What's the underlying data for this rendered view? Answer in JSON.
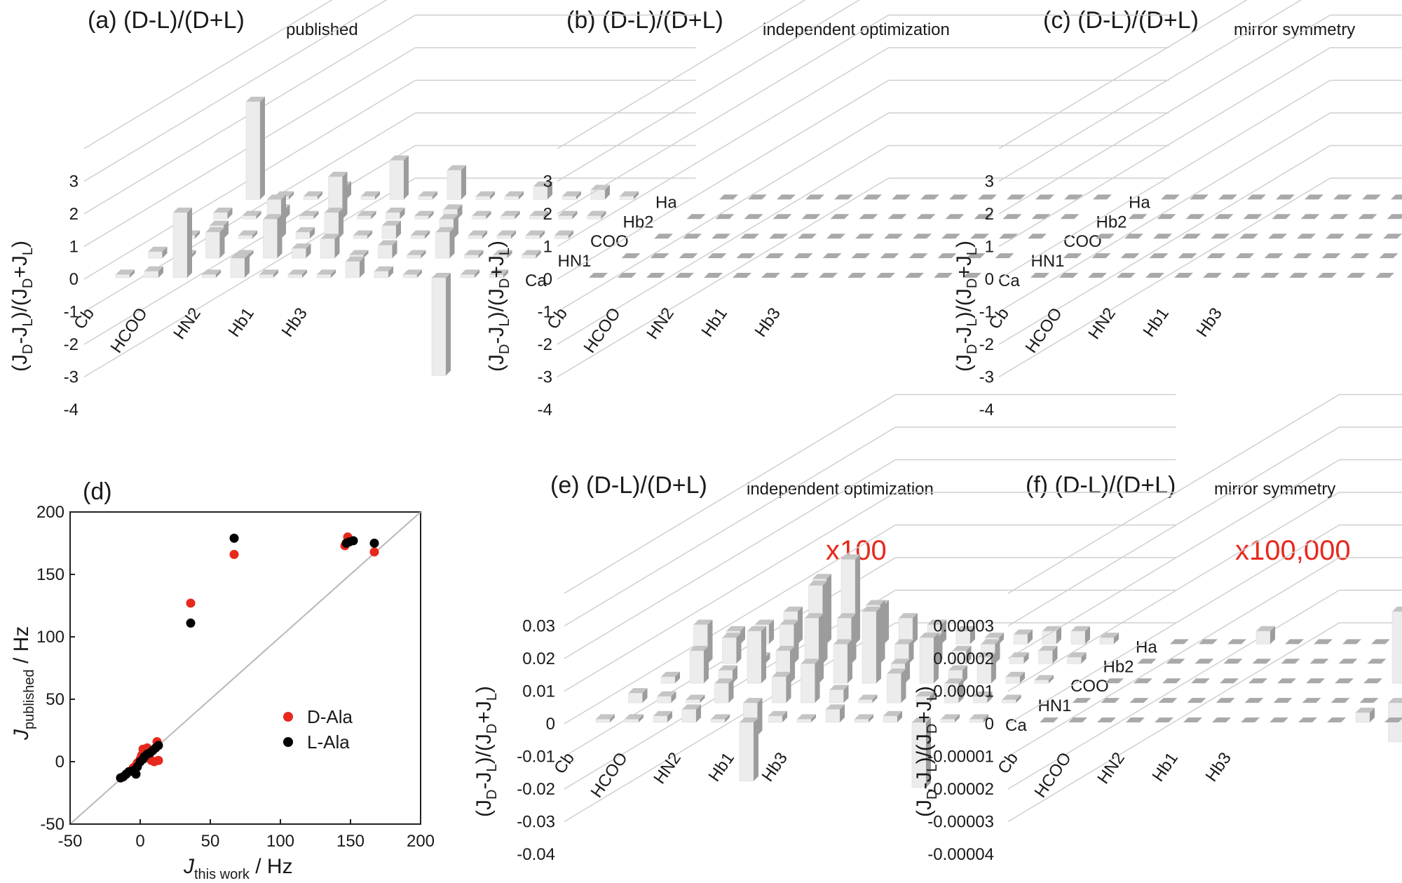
{
  "panels": {
    "a": {
      "title": "(a) (D-L)/(D+L)",
      "sub": "published",
      "yticks": [
        "3",
        "2",
        "1",
        "0",
        "-1",
        "-2",
        "-3",
        "-4"
      ]
    },
    "b": {
      "title": "(b) (D-L)/(D+L)",
      "sub": "independent optimization",
      "yticks": [
        "3",
        "2",
        "1",
        "0",
        "-1",
        "-2",
        "-3",
        "-4"
      ]
    },
    "c": {
      "title": "(c) (D-L)/(D+L)",
      "sub": "mirror symmetry",
      "yticks": [
        "3",
        "2",
        "1",
        "0",
        "-1",
        "-2",
        "-3",
        "-4"
      ]
    },
    "e": {
      "title": "(e) (D-L)/(D+L)",
      "sub": "independent optimization",
      "multiplier": "x100",
      "yticks": [
        "0.03",
        "0.02",
        "0.01",
        "0",
        "-0.01",
        "-0.02",
        "-0.03",
        "-0.04"
      ]
    },
    "f": {
      "title": "(f) (D-L)/(D+L)",
      "sub": "mirror symmetry",
      "multiplier": "x100,000",
      "yticks": [
        "0.00003",
        "0.00002",
        "0.00001",
        "0",
        "-0.00001",
        "-0.00002",
        "-0.00003",
        "-0.00004"
      ]
    }
  },
  "axes3d": {
    "x_categories": [
      "Cb",
      "HCOO",
      "HN2",
      "Hb1",
      "Hb3"
    ],
    "depth_categories": [
      "Ca",
      "HN1",
      "COO",
      "Hb2",
      "Ha"
    ],
    "ylabel_main": "(J",
    "ylabel_sub_d": "D",
    "ylabel_mid": "-J",
    "ylabel_sub_l": "L",
    "ylabel_mid2": ")/(J",
    "ylabel_sub_d2": "D",
    "ylabel_plus": "+J",
    "ylabel_sub_l2": "L",
    "ylabel_end": ")"
  },
  "chart_data": [
    {
      "type": "bar3d",
      "panel": "a",
      "title": "(a) (D-L)/(D+L) published",
      "ylim": [
        -4,
        3
      ],
      "ylabel": "(J_D-J_L)/(J_D+J_L)",
      "x_categories": [
        "Cb",
        "HCOO",
        "HN2",
        "Hb1",
        "Hb3"
      ],
      "depth_categories": [
        "Ca",
        "HN1",
        "COO",
        "Hb2",
        "Ha"
      ],
      "values": [
        [
          0.1,
          0.2,
          2.0,
          0.1,
          0.6,
          0.1,
          0.1,
          0.1,
          0.5,
          0.2,
          0.1,
          -3.0,
          0.1,
          0.1
        ],
        [
          0.2,
          0.1,
          0.8,
          0.1,
          1.2,
          0.3,
          0.6,
          0.1,
          0.4,
          0.1,
          0.8,
          0.1,
          0.1,
          0.1
        ],
        [
          0.1,
          0.4,
          0.1,
          1.2,
          0.2,
          0.8,
          0.1,
          0.4,
          0.1,
          0.6,
          0.1,
          0.1,
          0.1,
          0.1
        ],
        [
          0.2,
          0.1,
          0.3,
          0.1,
          1.3,
          0.1,
          0.2,
          0.1,
          0.3,
          0.1,
          0.1,
          0.1,
          0.1,
          0.1
        ],
        [
          3.0,
          0.1,
          0.1,
          0.4,
          0.1,
          1.2,
          0.1,
          0.9,
          0.1,
          0.1,
          0.4,
          0.1,
          0.3,
          0.1
        ]
      ]
    },
    {
      "type": "bar3d",
      "panel": "b",
      "title": "(b) (D-L)/(D+L) independent optimization",
      "ylim": [
        -4,
        3
      ],
      "ylabel": "(J_D-J_L)/(J_D+J_L)",
      "x_categories": [
        "Cb",
        "HCOO",
        "HN2",
        "Hb1",
        "Hb3"
      ],
      "depth_categories": [
        "Ca",
        "HN1",
        "COO",
        "Hb2",
        "Ha"
      ],
      "values": "all approximately 0"
    },
    {
      "type": "bar3d",
      "panel": "c",
      "title": "(c) (D-L)/(D+L) mirror symmetry",
      "ylim": [
        -4,
        3
      ],
      "ylabel": "(J_D-J_L)/(J_D+J_L)",
      "x_categories": [
        "Cb",
        "HCOO",
        "HN2",
        "Hb1",
        "Hb3"
      ],
      "depth_categories": [
        "Ca",
        "HN1",
        "COO",
        "Hb2",
        "Ha"
      ],
      "values": "all approximately 0"
    },
    {
      "type": "scatter",
      "panel": "d",
      "title": "(d)",
      "xlabel": "J_this work / Hz",
      "ylabel": "J_published / Hz",
      "xlim": [
        -50,
        200
      ],
      "ylim": [
        -50,
        200
      ],
      "xticks": [
        -50,
        0,
        50,
        100,
        150,
        200
      ],
      "yticks": [
        -50,
        0,
        50,
        100,
        150,
        200
      ],
      "reference_line": "y = x",
      "series": [
        {
          "name": "D-Ala",
          "color": "#e8281c",
          "points": [
            [
              -14,
              -13
            ],
            [
              -12,
              -12
            ],
            [
              -10,
              -10
            ],
            [
              -8,
              -8
            ],
            [
              -6,
              -7
            ],
            [
              -5,
              -5
            ],
            [
              -3,
              -3
            ],
            [
              -2,
              -1
            ],
            [
              0,
              2
            ],
            [
              1,
              5
            ],
            [
              2,
              10
            ],
            [
              3,
              3
            ],
            [
              5,
              11
            ],
            [
              6,
              6
            ],
            [
              7,
              8
            ],
            [
              8,
              1
            ],
            [
              10,
              0
            ],
            [
              12,
              16
            ],
            [
              13,
              1
            ],
            [
              36,
              127
            ],
            [
              67,
              166
            ],
            [
              146,
              173
            ],
            [
              148,
              180
            ],
            [
              150,
              177
            ],
            [
              152,
              177
            ],
            [
              167,
              168
            ]
          ]
        },
        {
          "name": "L-Ala",
          "color": "#000000",
          "points": [
            [
              -14,
              -13
            ],
            [
              -12,
              -12
            ],
            [
              -10,
              -10
            ],
            [
              -8,
              -8
            ],
            [
              -5,
              -7
            ],
            [
              -3,
              -10
            ],
            [
              -2,
              -4
            ],
            [
              0,
              0
            ],
            [
              2,
              2
            ],
            [
              3,
              4
            ],
            [
              5,
              6
            ],
            [
              7,
              7
            ],
            [
              9,
              9
            ],
            [
              11,
              11
            ],
            [
              13,
              13
            ],
            [
              36,
              111
            ],
            [
              67,
              179
            ],
            [
              147,
              175
            ],
            [
              149,
              176
            ],
            [
              152,
              177
            ],
            [
              167,
              175
            ]
          ]
        }
      ]
    },
    {
      "type": "bar3d",
      "panel": "e",
      "title": "(e) (D-L)/(D+L) independent optimization",
      "multiplier": "x100",
      "ylim": [
        -0.04,
        0.03
      ],
      "ylabel": "(J_D-J_L)/(J_D+J_L)",
      "x_categories": [
        "Cb",
        "HCOO",
        "HN2",
        "Hb1",
        "Hb3"
      ],
      "depth_categories": [
        "Ca",
        "HN1",
        "COO",
        "Hb2",
        "Ha"
      ],
      "values": [
        [
          0.001,
          0.001,
          0.002,
          0.004,
          0.001,
          -0.018,
          0.002,
          0.001,
          0.004,
          0.001,
          0.002,
          -0.02,
          0.001,
          0.001
        ],
        [
          0.003,
          0.002,
          0.001,
          0.006,
          -0.01,
          0.008,
          0.012,
          0.004,
          0.001,
          0.009,
          0.002,
          0.006,
          0.002,
          0.001
        ],
        [
          0.002,
          0.01,
          0.004,
          0.016,
          0.01,
          0.02,
          0.012,
          0.022,
          0.006,
          0.014,
          0.004,
          0.008,
          0.002,
          0.001
        ],
        [
          0.012,
          0.008,
          0.002,
          0.012,
          0.024,
          0.014,
          0.018,
          0.006,
          0.008,
          0.004,
          0.006,
          0.002,
          0.004,
          0.002
        ],
        [
          0.004,
          0.006,
          0.01,
          0.02,
          0.026,
          0.012,
          0.008,
          0.006,
          0.004,
          0.002,
          0.003,
          0.004,
          0.004,
          0.002
        ]
      ]
    },
    {
      "type": "bar3d",
      "panel": "f",
      "title": "(f) (D-L)/(D+L) mirror symmetry",
      "multiplier": "x100,000",
      "ylim": [
        -4e-05,
        3e-05
      ],
      "ylabel": "(J_D-J_L)/(J_D+J_L)",
      "x_categories": [
        "Cb",
        "HCOO",
        "HN2",
        "Hb1",
        "Hb3"
      ],
      "depth_categories": [
        "Ca",
        "HN1",
        "COO",
        "Hb2",
        "Ha"
      ],
      "values": [
        [
          0,
          0,
          0,
          0,
          0,
          0,
          0,
          0,
          0,
          0,
          0,
          3e-06,
          0,
          0
        ],
        [
          0,
          0,
          0,
          0,
          0,
          0,
          0,
          0,
          0,
          0,
          0,
          -1.2e-05,
          0,
          0
        ],
        [
          0,
          0,
          0,
          0,
          0,
          0,
          0,
          0,
          0,
          0,
          2.2e-05,
          0,
          0,
          0
        ],
        [
          0,
          0,
          0,
          0,
          0,
          0,
          0,
          0,
          0,
          0,
          4e-06,
          0,
          0,
          0
        ],
        [
          0,
          0,
          0,
          4e-06,
          0,
          0,
          0,
          0,
          0,
          0,
          0,
          0,
          0,
          0
        ]
      ]
    }
  ],
  "scatter_labels": {
    "title": "(d)",
    "xlabel_j": "J",
    "xlabel_sub": "this work",
    "xlabel_unit": " / Hz",
    "ylabel_j": "J",
    "ylabel_sub": "published",
    "ylabel_unit": " / Hz",
    "xticks": [
      "-50",
      "0",
      "50",
      "100",
      "150",
      "200"
    ],
    "yticks": [
      "200",
      "150",
      "100",
      "50",
      "0",
      "-50"
    ],
    "legend_d": "D-Ala",
    "legend_l": "L-Ala"
  }
}
